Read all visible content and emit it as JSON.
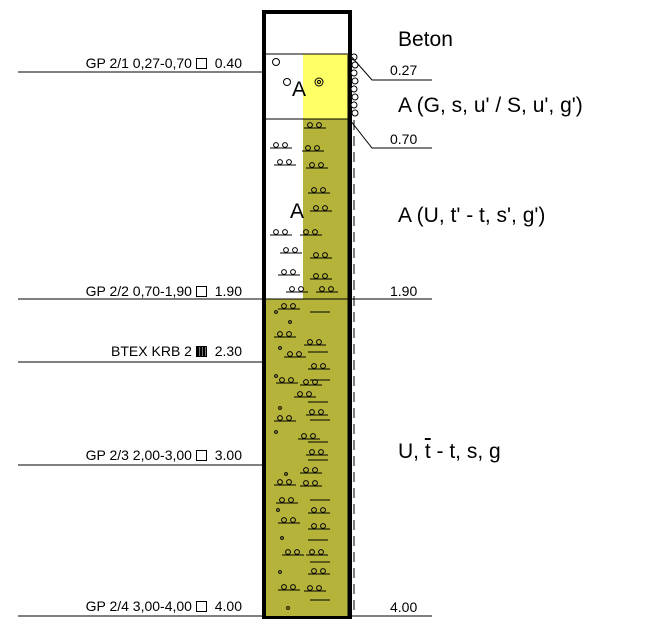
{
  "colors": {
    "fill_yellow": "#ffff66",
    "fill_olive": "#b5b33a",
    "border": "#000000"
  },
  "samples": [
    {
      "id": "GP 2/1",
      "range": "0,27-0,70",
      "depth": "0.40",
      "marker": "empty-box"
    },
    {
      "id": "GP 2/2",
      "range": "0,70-1,90",
      "depth": "1.90",
      "marker": "empty-box"
    },
    {
      "id": "BTEX KRB 2",
      "range": "",
      "depth": "2.30",
      "marker": "filled-box"
    },
    {
      "id": "GP 2/3",
      "range": "2,00-3,00",
      "depth": "3.00",
      "marker": "empty-box"
    },
    {
      "id": "GP 2/4",
      "range": "3,00-4,00",
      "depth": "4.00",
      "marker": "empty-box"
    }
  ],
  "layer_depths": [
    "0.27",
    "0.70",
    "1.90",
    "4.00"
  ],
  "layers": [
    {
      "description": "Beton",
      "code": ""
    },
    {
      "description": "A (G, s, u' / S, u', g')",
      "code": "A"
    },
    {
      "description": "A (U, t' - t, s', g')",
      "code": "A"
    },
    {
      "description_pre": "U, ",
      "description_over": "t",
      "description_post": " - t, s, g",
      "code": ""
    }
  ]
}
